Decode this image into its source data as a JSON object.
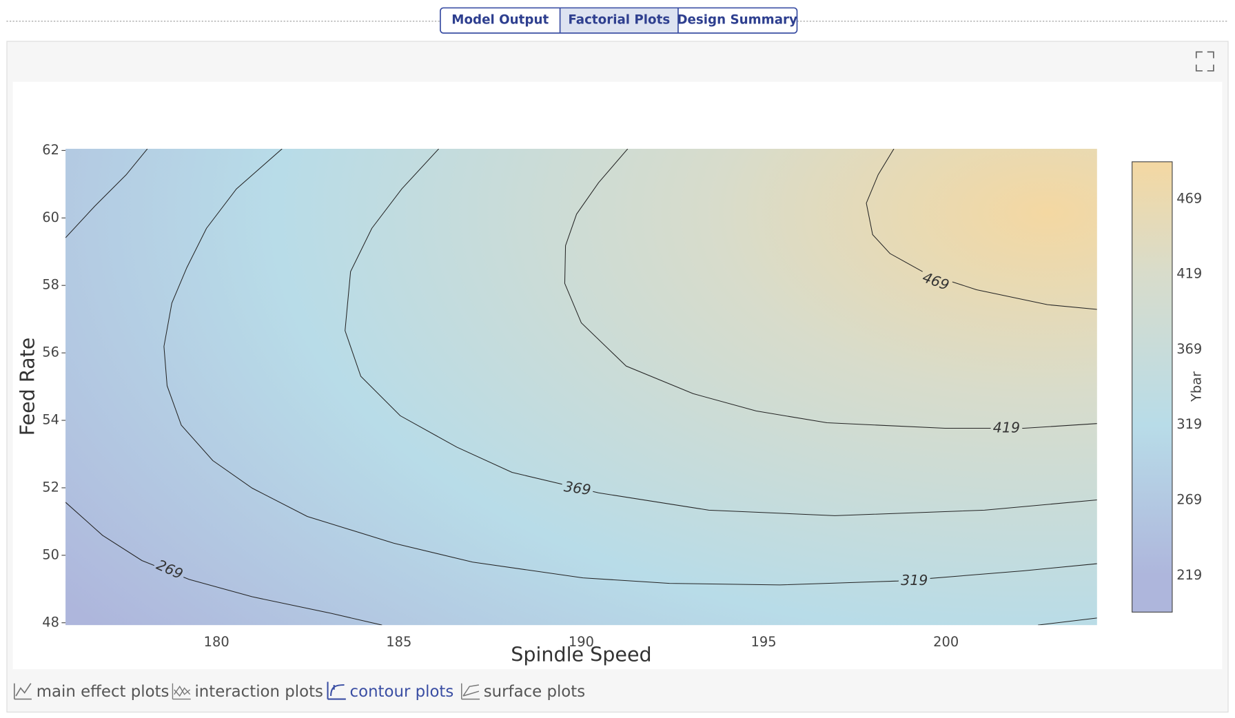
{
  "tabs": [
    "Model Output",
    "Factorial Plots",
    "Design Summary"
  ],
  "plot_tabs": [
    "main effect plots",
    "interaction plots",
    "contour plots",
    "surface plots"
  ],
  "chart_data": {
    "type": "contour",
    "x_label": "Spindle Speed",
    "y_label": "Feed Rate",
    "colorbar_title": "Ybar",
    "xlim": [
      175.86,
      204.14
    ],
    "xticks": [
      180,
      185,
      190,
      195,
      200
    ],
    "ylim": [
      47.93,
      62.05
    ],
    "yticks": [
      48,
      50,
      52,
      54,
      56,
      58,
      60,
      62
    ],
    "zlim": [
      195,
      494
    ],
    "zticks": [
      219,
      269,
      319,
      369,
      419,
      469
    ],
    "contour_levels": [
      269,
      319,
      369,
      419,
      469
    ],
    "colorscale": [
      {
        "value": 219,
        "color": "#aeb6dc"
      },
      {
        "value": 319,
        "color": "#b8dce8"
      },
      {
        "value": 419,
        "color": "#d8dccb"
      },
      {
        "value": 494,
        "color": "#f4d8a2"
      }
    ]
  }
}
